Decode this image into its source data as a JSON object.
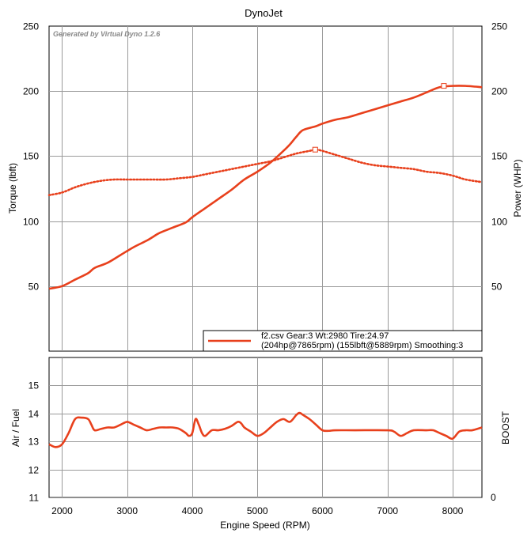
{
  "title": "DynoJet",
  "watermark": "Generated by Virtual Dyno 1.2.6",
  "colors": {
    "series": "#e8401c",
    "grid": "#9a9a9a",
    "frame": "#000000"
  },
  "chart_data": [
    {
      "type": "line",
      "ylabel_left": "Torque (lbft)",
      "ylabel_right": "Power (WHP)",
      "ylim": [
        0,
        250
      ],
      "xlim": [
        1800,
        8450
      ],
      "xticks": [
        2000,
        3000,
        4000,
        5000,
        6000,
        7000,
        8000
      ],
      "yticks": [
        50,
        100,
        150,
        200,
        250
      ],
      "y_tick_labels": [
        "50",
        "100",
        "150",
        "200",
        "250"
      ],
      "grid": true,
      "legend_position": "bottom-right",
      "legend": {
        "line1": "f2.csv Gear:3 Wt:2980 Tire:24.97",
        "line2": "(204hp@7865rpm) (155lbft@5889rpm) Smoothing:3"
      },
      "series": [
        {
          "style": "solid",
          "x": [
            1800,
            2000,
            2200,
            2400,
            2500,
            2700,
            2900,
            3100,
            3300,
            3400,
            3500,
            3700,
            3900,
            4000,
            4200,
            4400,
            4600,
            4800,
            5000,
            5200,
            5400,
            5500,
            5600,
            5700,
            5900,
            6000,
            6200,
            6400,
            6600,
            6800,
            7000,
            7200,
            7400,
            7600,
            7800,
            8000,
            8200,
            8450
          ],
          "y": [
            48,
            50,
            55,
            60,
            64,
            68,
            74,
            80,
            85,
            88,
            91,
            95,
            99,
            103,
            110,
            117,
            124,
            132,
            138,
            145,
            154,
            159,
            165,
            170,
            173,
            175,
            178,
            180,
            183,
            186,
            189,
            192,
            195,
            199,
            203,
            204,
            204,
            203
          ]
        },
        {
          "style": "dotted",
          "x": [
            1800,
            2000,
            2200,
            2400,
            2600,
            2800,
            3000,
            3200,
            3400,
            3600,
            3800,
            4000,
            4200,
            4400,
            4600,
            4800,
            5000,
            5200,
            5400,
            5600,
            5800,
            5900,
            6000,
            6200,
            6400,
            6600,
            6800,
            7000,
            7200,
            7400,
            7600,
            7800,
            8000,
            8200,
            8450
          ],
          "y": [
            120,
            122,
            126,
            129,
            131,
            132,
            132,
            132,
            132,
            132,
            133,
            134,
            136,
            138,
            140,
            142,
            144,
            146,
            149,
            152,
            154,
            155,
            154,
            151,
            148,
            145,
            143,
            142,
            141,
            140,
            138,
            137,
            135,
            132,
            130
          ]
        }
      ],
      "markers": [
        {
          "series": 0,
          "x": 7865,
          "y": 204
        },
        {
          "series": 1,
          "x": 5889,
          "y": 155
        }
      ]
    },
    {
      "type": "line",
      "xlabel": "Engine Speed (RPM)",
      "ylabel_left": "Air / Fuel",
      "ylabel_right": "BOOST",
      "ylim": [
        11,
        16
      ],
      "xlim": [
        1800,
        8450
      ],
      "xticks": [
        2000,
        3000,
        4000,
        5000,
        6000,
        7000,
        8000
      ],
      "yticks": [
        11,
        12,
        13,
        14,
        15
      ],
      "y_tick_labels": [
        "11",
        "12",
        "13",
        "14",
        "15"
      ],
      "right_tick_label": "0",
      "grid": true,
      "series": [
        {
          "style": "solid",
          "x": [
            1800,
            1900,
            2000,
            2100,
            2200,
            2300,
            2400,
            2450,
            2500,
            2600,
            2700,
            2800,
            2900,
            3000,
            3100,
            3200,
            3300,
            3400,
            3500,
            3600,
            3700,
            3800,
            3900,
            3950,
            4000,
            4050,
            4100,
            4150,
            4200,
            4300,
            4400,
            4500,
            4600,
            4700,
            4750,
            4800,
            4900,
            5000,
            5100,
            5200,
            5300,
            5400,
            5500,
            5600,
            5650,
            5700,
            5800,
            5900,
            6000,
            6100,
            6200,
            6500,
            7000,
            7100,
            7200,
            7300,
            7400,
            7600,
            7700,
            7800,
            7900,
            8000,
            8100,
            8200,
            8300,
            8450
          ],
          "y": [
            12.9,
            12.8,
            12.9,
            13.3,
            13.8,
            13.85,
            13.8,
            13.6,
            13.4,
            13.45,
            13.5,
            13.5,
            13.6,
            13.7,
            13.6,
            13.5,
            13.4,
            13.45,
            13.5,
            13.5,
            13.5,
            13.45,
            13.3,
            13.2,
            13.3,
            13.8,
            13.6,
            13.3,
            13.2,
            13.4,
            13.4,
            13.45,
            13.55,
            13.7,
            13.65,
            13.5,
            13.35,
            13.2,
            13.3,
            13.5,
            13.7,
            13.8,
            13.7,
            13.95,
            14.02,
            13.95,
            13.8,
            13.6,
            13.4,
            13.38,
            13.4,
            13.4,
            13.4,
            13.35,
            13.2,
            13.3,
            13.4,
            13.4,
            13.4,
            13.3,
            13.2,
            13.1,
            13.35,
            13.4,
            13.4,
            13.5
          ]
        }
      ]
    }
  ]
}
